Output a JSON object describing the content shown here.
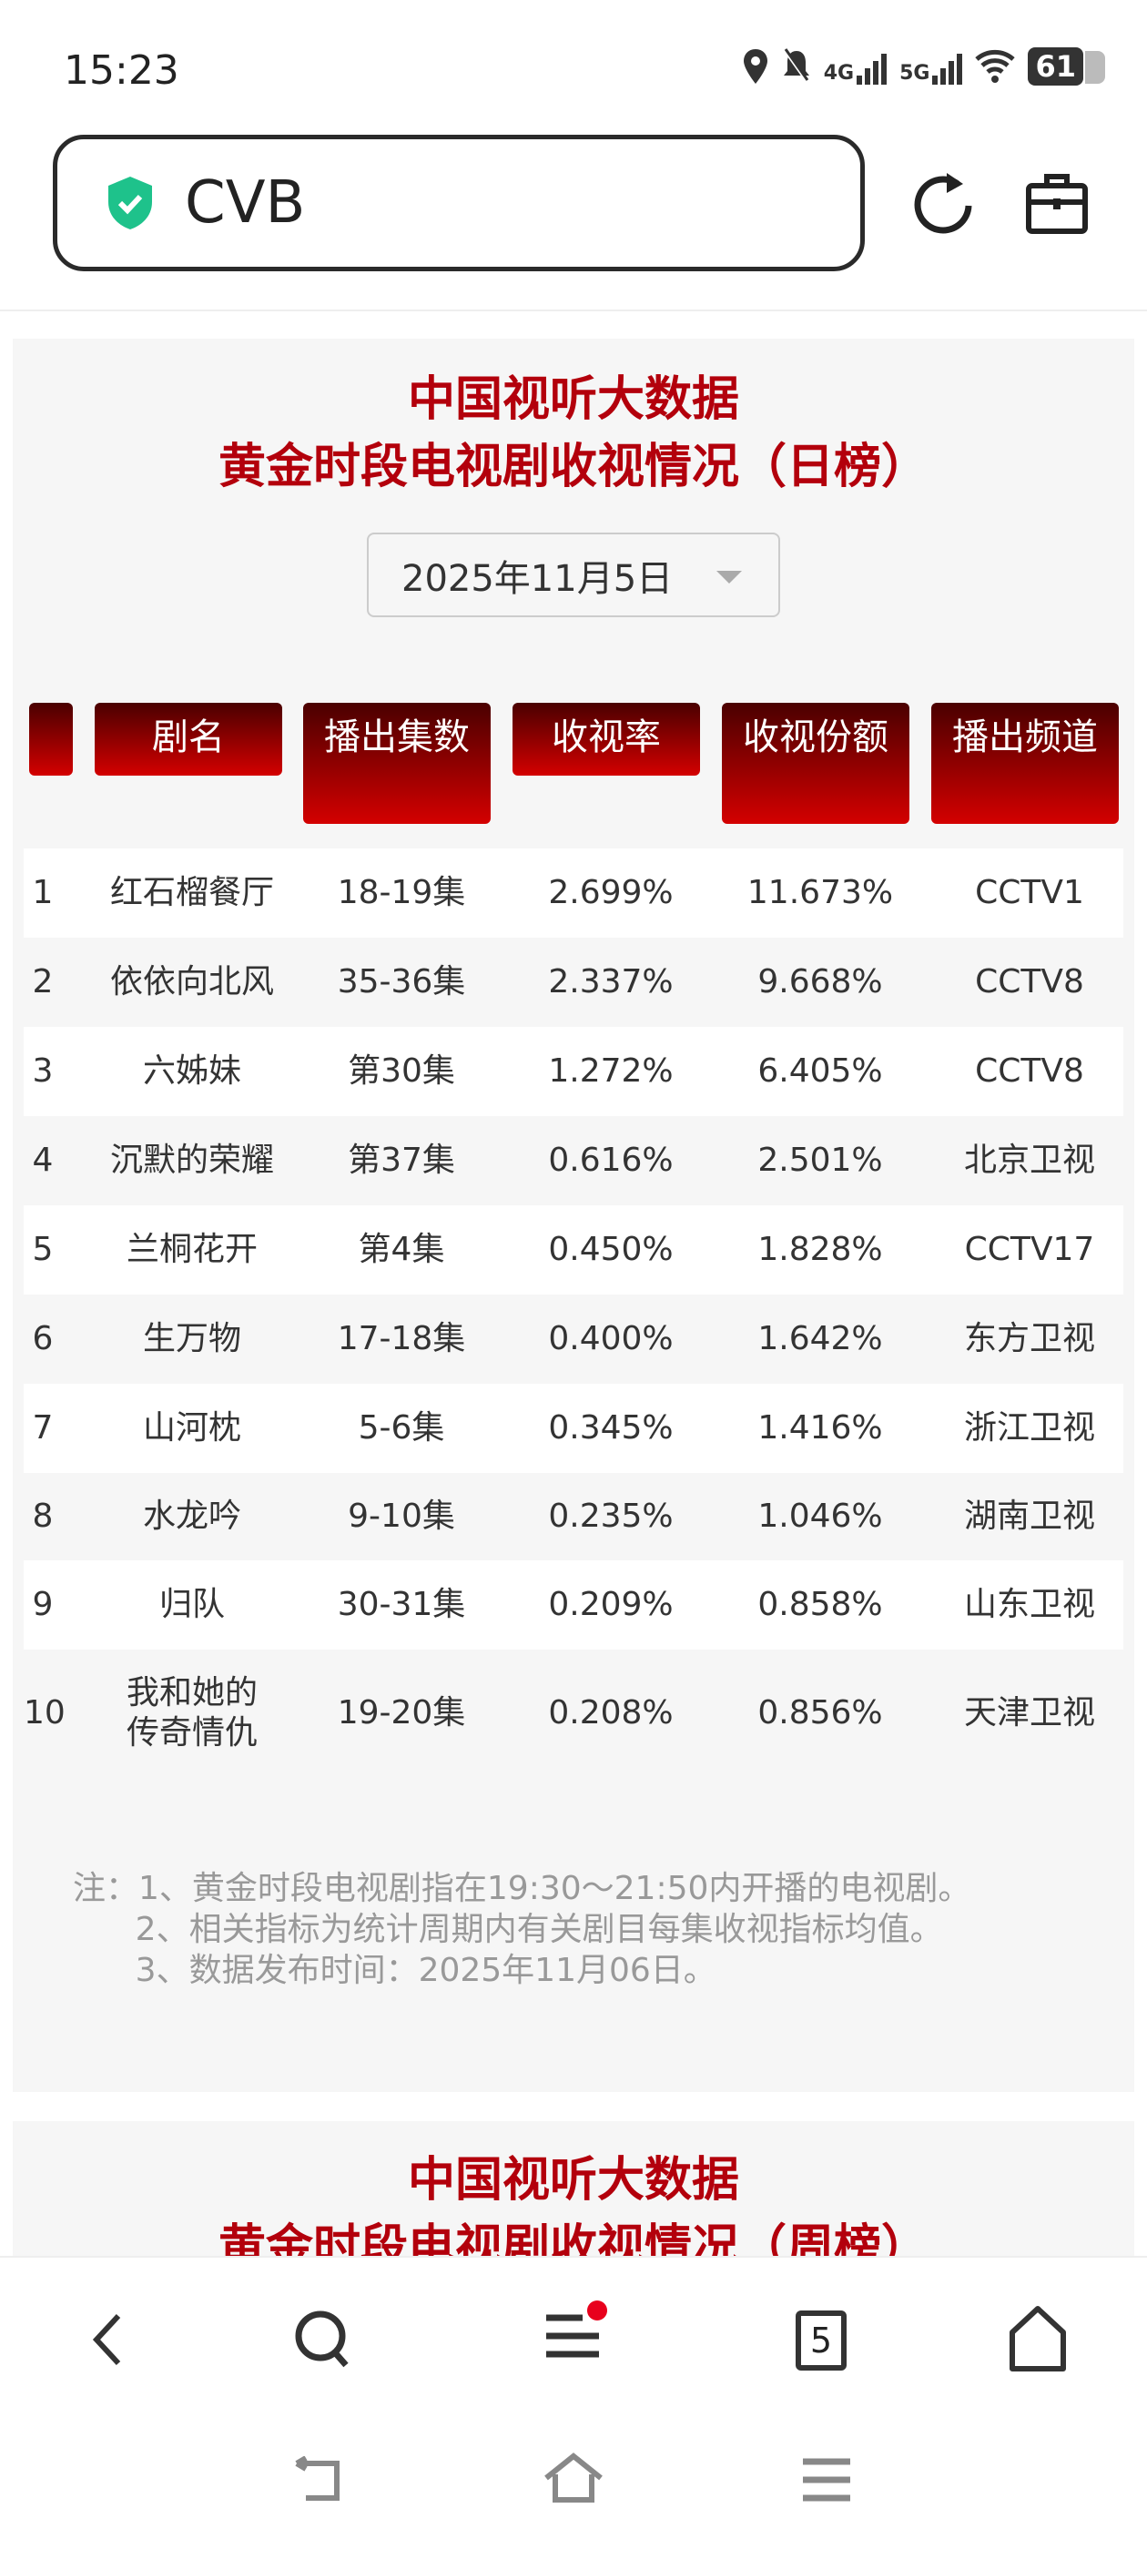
{
  "status": {
    "time": "15:23",
    "net1": "4G",
    "net2": "5G",
    "battery": "61"
  },
  "browser": {
    "url": "CVB",
    "tabs_count": "5"
  },
  "card1": {
    "title1": "中国视听大数据",
    "title2": "黄金时段电视剧收视情况（日榜）",
    "date": "2025年11月5日",
    "headers": [
      "",
      "剧名",
      "播出集数",
      "收视率",
      "收视份额",
      "播出频道"
    ],
    "rows": [
      [
        "1",
        "红石榴餐厅",
        "18-19集",
        "2.699%",
        "11.673%",
        "CCTV1"
      ],
      [
        "2",
        "依依向北风",
        "35-36集",
        "2.337%",
        "9.668%",
        "CCTV8"
      ],
      [
        "3",
        "六姊妹",
        "第30集",
        "1.272%",
        "6.405%",
        "CCTV8"
      ],
      [
        "4",
        "沉默的荣耀",
        "第37集",
        "0.616%",
        "2.501%",
        "北京卫视"
      ],
      [
        "5",
        "兰桐花开",
        "第4集",
        "0.450%",
        "1.828%",
        "CCTV17"
      ],
      [
        "6",
        "生万物",
        "17-18集",
        "0.400%",
        "1.642%",
        "东方卫视"
      ],
      [
        "7",
        "山河枕",
        "5-6集",
        "0.345%",
        "1.416%",
        "浙江卫视"
      ],
      [
        "8",
        "水龙吟",
        "9-10集",
        "0.235%",
        "1.046%",
        "湖南卫视"
      ],
      [
        "9",
        "归队",
        "30-31集",
        "0.209%",
        "0.858%",
        "山东卫视"
      ],
      [
        "10",
        "我和她的传奇情仇",
        "19-20集",
        "0.208%",
        "0.856%",
        "天津卫视"
      ]
    ],
    "notes": [
      "注：1、黄金时段电视剧指在19:30～21:50内开播的电视剧。",
      "      2、相关指标为统计周期内有关剧目每集收视指标均值。",
      "      3、数据发布时间：2025年11月06日。"
    ]
  },
  "card2": {
    "title1": "中国视听大数据",
    "title2": "黄金时段电视剧收视情况（周榜）"
  },
  "colors": {
    "accent": "#b3000c",
    "shield": "#1ec28b",
    "badge": "#e8001c"
  }
}
